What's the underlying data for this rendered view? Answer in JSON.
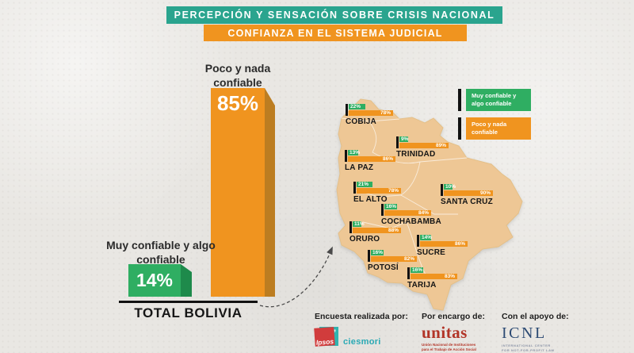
{
  "colors": {
    "teal": "#2aa48e",
    "orange": "#f0941f",
    "orange_dark": "#bc7d21",
    "green": "#2fae62",
    "green_dark": "#1e8a4b",
    "map_fill": "#eec795",
    "ink": "#222222"
  },
  "header": {
    "title": "PERCEPCIÓN Y SENSACIÓN SOBRE CRISIS NACIONAL",
    "subtitle": "CONFIANZA EN EL SISTEMA JUDICIAL"
  },
  "chart": {
    "total_label": "TOTAL BOLIVIA",
    "bars": [
      {
        "label": "Poco y nada confiable",
        "value": "85%"
      },
      {
        "label": "Muy confiable y algo confiable",
        "value": "14%"
      }
    ]
  },
  "legend": {
    "items": [
      {
        "label": "Muy confiable y algo confiable"
      },
      {
        "label": "Poco y nada confiable"
      }
    ]
  },
  "map_cities": [
    {
      "name": "COBIJA",
      "muy_confiable_pct": 22,
      "poco_nada_pct": 78
    },
    {
      "name": "TRINIDAD",
      "muy_confiable_pct": 9,
      "poco_nada_pct": 89
    },
    {
      "name": "LA PAZ",
      "muy_confiable_pct": 13,
      "poco_nada_pct": 86
    },
    {
      "name": "EL ALTO",
      "muy_confiable_pct": 21,
      "poco_nada_pct": 78
    },
    {
      "name": "SANTA CRUZ",
      "muy_confiable_pct": 10,
      "poco_nada_pct": 90
    },
    {
      "name": "COCHABAMBA",
      "muy_confiable_pct": 16,
      "poco_nada_pct": 84
    },
    {
      "name": "ORURO",
      "muy_confiable_pct": 11,
      "poco_nada_pct": 88
    },
    {
      "name": "SUCRE",
      "muy_confiable_pct": 14,
      "poco_nada_pct": 86
    },
    {
      "name": "POTOSÍ",
      "muy_confiable_pct": 16,
      "poco_nada_pct": 82
    },
    {
      "name": "TARIJA",
      "muy_confiable_pct": 16,
      "poco_nada_pct": 83
    }
  ],
  "chart_data": {
    "type": "bar",
    "title": "CONFIANZA EN EL SISTEMA JUDICIAL",
    "subtitle": "PERCEPCIÓN Y SENSACIÓN SOBRE CRISIS NACIONAL",
    "unit": "%",
    "total": {
      "label": "TOTAL BOLIVIA",
      "categories": [
        "Poco y nada confiable",
        "Muy confiable y algo confiable"
      ],
      "values": [
        85,
        14
      ]
    },
    "by_city": {
      "categories": [
        "COBIJA",
        "TRINIDAD",
        "LA PAZ",
        "EL ALTO",
        "SANTA CRUZ",
        "COCHABAMBA",
        "ORURO",
        "SUCRE",
        "POTOSÍ",
        "TARIJA"
      ],
      "series": [
        {
          "name": "Muy confiable y algo confiable",
          "values": [
            22,
            9,
            13,
            21,
            10,
            16,
            11,
            14,
            16,
            16
          ]
        },
        {
          "name": "Poco y nada confiable",
          "values": [
            78,
            89,
            86,
            78,
            90,
            84,
            88,
            86,
            82,
            83
          ]
        }
      ],
      "legend_position": "top-right"
    }
  },
  "footer": {
    "surveyor": {
      "caption": "Encuesta realizada por:",
      "brand_primary": "Ipsos",
      "brand_secondary": "ciesmori"
    },
    "commissioner": {
      "caption": "Por encargo de:",
      "brand": "unitas",
      "subtext_line1": "Unión Nacional de Instituciones",
      "subtext_line2": "para el Trabajo de Acción Social"
    },
    "support": {
      "caption": "Con el apoyo de:",
      "brand": "ICNL",
      "subtext_line1": "INTERNATIONAL CENTER",
      "subtext_line2": "FOR NOT-FOR-PROFIT LAW"
    }
  }
}
